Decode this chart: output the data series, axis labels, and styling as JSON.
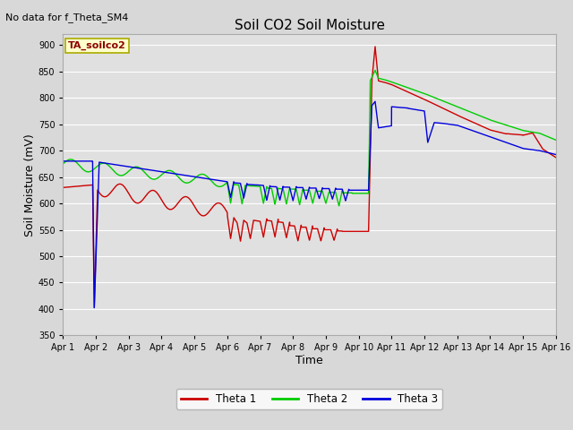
{
  "title": "Soil CO2 Soil Moisture",
  "no_data_text": "No data for f_Theta_SM4",
  "box_label": "TA_soilco2",
  "xlabel": "Time",
  "ylabel": "Soil Moisture (mV)",
  "ylim": [
    350,
    920
  ],
  "yticks": [
    350,
    400,
    450,
    500,
    550,
    600,
    650,
    700,
    750,
    800,
    850,
    900
  ],
  "bg_color": "#d8d8d8",
  "plot_bg": "#e0e0e0",
  "grid_color": "#ffffff",
  "colors": {
    "theta1": "#cc0000",
    "theta2": "#00cc00",
    "theta3": "#0000dd"
  },
  "legend": [
    "Theta 1",
    "Theta 2",
    "Theta 3"
  ],
  "x_tick_labels": [
    "Apr 1",
    "Apr 2",
    "Apr 3",
    "Apr 4",
    "Apr 5",
    "Apr 6",
    "Apr 7",
    "Apr 8",
    "Apr 9",
    "Apr 10",
    "Apr 11",
    "Apr 12",
    "Apr 13",
    "Apr 14",
    "Apr 15",
    "Apr 16"
  ]
}
